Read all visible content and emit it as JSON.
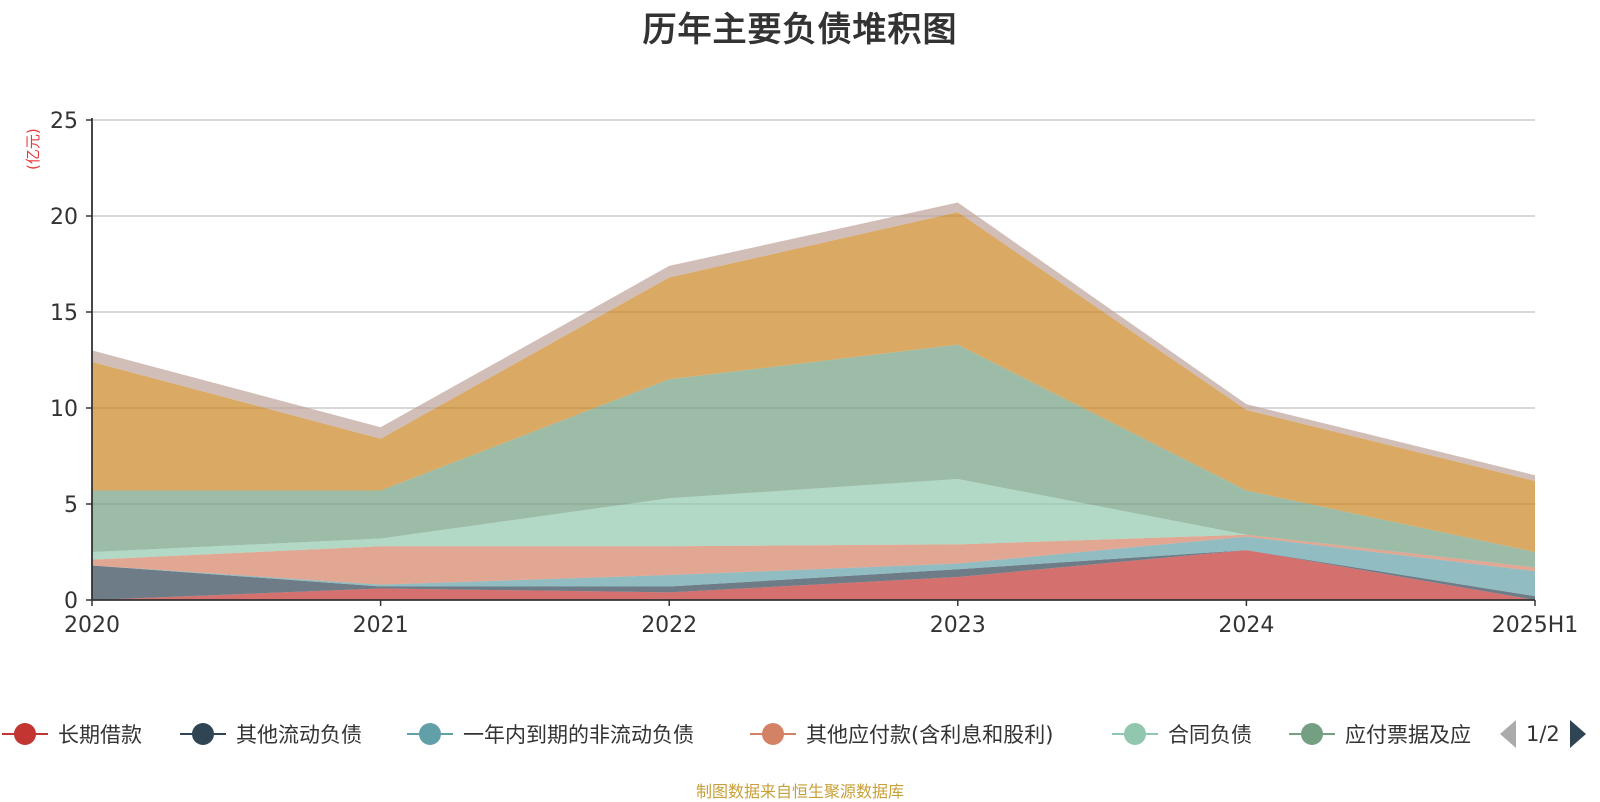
{
  "title": "历年主要负债堆积图",
  "unit_label": "(亿元)",
  "source_note": "制图数据来自恒生聚源数据库",
  "legend_page": "1/2",
  "chart_data": {
    "type": "area",
    "stacked": true,
    "title": "历年主要负债堆积图",
    "ylabel": "(亿元)",
    "ylim": [
      0,
      25
    ],
    "yticks": [
      0,
      5,
      10,
      15,
      20,
      25
    ],
    "grid": true,
    "legend_position": "bottom",
    "categories": [
      "2020",
      "2021",
      "2022",
      "2023",
      "2024",
      "2025H1"
    ],
    "series": [
      {
        "name": "长期借款",
        "color": "#c23531",
        "values": [
          0.0,
          0.6,
          0.4,
          1.2,
          2.6,
          0.0
        ]
      },
      {
        "name": "其他流动负债",
        "color": "#2f4554",
        "values": [
          1.8,
          0.1,
          0.3,
          0.4,
          0.0,
          0.2
        ]
      },
      {
        "name": "一年内到期的非流动负债",
        "color": "#61a0a8",
        "values": [
          0.0,
          0.1,
          0.6,
          0.3,
          0.7,
          1.3
        ]
      },
      {
        "name": "其他应付款(含利息和股利)",
        "color": "#d48265",
        "values": [
          0.3,
          2.0,
          1.5,
          1.0,
          0.1,
          0.2
        ]
      },
      {
        "name": "合同负债",
        "color": "#91c7ae",
        "values": [
          0.4,
          0.4,
          2.5,
          3.4,
          0.0,
          0.0
        ]
      },
      {
        "name": "应付票据及应付账款",
        "color": "#749f83",
        "values": [
          3.2,
          2.5,
          6.2,
          7.0,
          2.3,
          0.8
        ]
      },
      {
        "name": "",
        "color": "#ca8622",
        "values": [
          6.7,
          2.7,
          5.3,
          6.9,
          4.2,
          3.7
        ]
      },
      {
        "name": "",
        "color": "#bda29a",
        "values": [
          0.6,
          0.6,
          0.6,
          0.5,
          0.3,
          0.3
        ]
      }
    ]
  },
  "legend": {
    "visible_items": [
      {
        "label": "长期借款",
        "color": "#c23531"
      },
      {
        "label": "其他流动负债",
        "color": "#2f4554"
      },
      {
        "label": "一年内到期的非流动负债",
        "color": "#61a0a8"
      },
      {
        "label": "其他应付款(含利息和股利)",
        "color": "#d48265"
      },
      {
        "label": "合同负债",
        "color": "#91c7ae"
      },
      {
        "label": "应付票据及应",
        "color": "#749f83"
      }
    ]
  }
}
